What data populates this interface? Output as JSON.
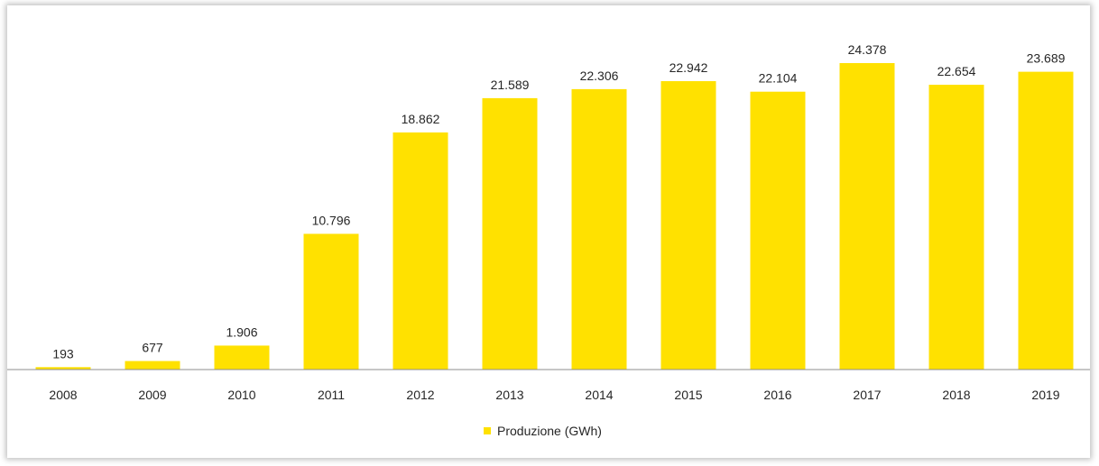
{
  "chart_data": {
    "type": "bar",
    "categories": [
      "2008",
      "2009",
      "2010",
      "2011",
      "2012",
      "2013",
      "2014",
      "2015",
      "2016",
      "2017",
      "2018",
      "2019"
    ],
    "series": [
      {
        "name": "Produzione (GWh)",
        "values": [
          193,
          677,
          1906,
          10796,
          18862,
          21589,
          22306,
          22942,
          22104,
          24378,
          22654,
          23689
        ],
        "labels": [
          "193",
          "677",
          "1.906",
          "10.796",
          "18.862",
          "21.589",
          "22.306",
          "22.942",
          "22.104",
          "24.378",
          "22.654",
          "23.689"
        ],
        "color": "#FFE100"
      }
    ],
    "ylim": [
      0,
      26000
    ],
    "grid": false,
    "legend_position": "bottom-center"
  }
}
